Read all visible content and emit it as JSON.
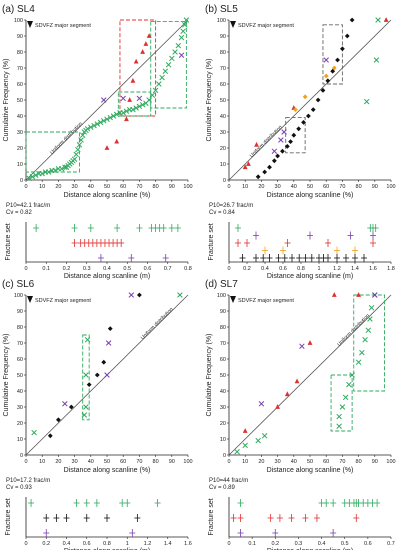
{
  "panels": [
    {
      "id": "a",
      "title": "(a) SL4",
      "segment_label": "SDVFZ major segment",
      "distribution_label": "Uniform distribution",
      "p10_text": "P10=42.1 frac/m",
      "cv_text": "Cv = 0.82",
      "colors": {
        "green": "#2eaa5e",
        "red": "#e03030",
        "purple": "#7a3fb0",
        "black": "#111111",
        "orange": "#f0a020",
        "gray": "#666666"
      }
    },
    {
      "id": "b",
      "title": "(b) SL5",
      "segment_label": "SDVFZ major segment",
      "distribution_label": "Uniform distribution",
      "p10_text": "P10=26.7 frac/m",
      "cv_text": "Cv = 0.84"
    },
    {
      "id": "c",
      "title": "(c) SL6",
      "segment_label": "SDVFZ major segment",
      "distribution_label": "Uniform distribution",
      "p10_text": "P10=17.2 frac/m",
      "cv_text": "Cv = 0.93"
    },
    {
      "id": "d",
      "title": "(d) SL7",
      "segment_label": "SDVFZ major segment",
      "distribution_label": "Uniform distribution",
      "p10_text": "P10=44 frac/m",
      "cv_text": "Cv = 0.89"
    }
  ],
  "chart_data": [
    {
      "type": "scatter",
      "panel": "a",
      "xlabel": "Distance along scanline (%)",
      "ylabel": "Cumulative Frequency (%)",
      "xlim": [
        0,
        100
      ],
      "ylim": [
        0,
        100
      ],
      "xticks": [
        0,
        10,
        20,
        30,
        40,
        50,
        60,
        70,
        80,
        90,
        100
      ],
      "yticks": [
        0,
        10,
        20,
        30,
        40,
        50,
        60,
        70,
        80,
        90,
        100
      ],
      "series": [
        {
          "set": "green",
          "marker": "x",
          "points": [
            [
              2,
              1
            ],
            [
              4,
              2
            ],
            [
              6,
              3
            ],
            [
              8,
              4
            ],
            [
              10,
              4
            ],
            [
              12,
              5
            ],
            [
              14,
              5
            ],
            [
              16,
              6
            ],
            [
              18,
              6
            ],
            [
              20,
              7
            ],
            [
              22,
              7
            ],
            [
              24,
              8
            ],
            [
              25,
              8
            ],
            [
              26,
              9
            ],
            [
              27,
              10
            ],
            [
              28,
              11
            ],
            [
              29,
              12
            ],
            [
              30,
              13
            ],
            [
              31,
              16
            ],
            [
              32,
              19
            ],
            [
              33,
              22
            ],
            [
              34,
              25
            ],
            [
              35,
              28
            ],
            [
              36,
              30
            ],
            [
              37,
              31
            ],
            [
              38,
              32
            ],
            [
              40,
              33
            ],
            [
              42,
              34
            ],
            [
              44,
              35
            ],
            [
              46,
              36
            ],
            [
              48,
              37
            ],
            [
              50,
              38
            ],
            [
              52,
              39
            ],
            [
              54,
              40
            ],
            [
              56,
              41
            ],
            [
              58,
              42
            ],
            [
              60,
              42
            ],
            [
              62,
              43
            ],
            [
              64,
              44
            ],
            [
              66,
              44
            ],
            [
              68,
              45
            ],
            [
              70,
              46
            ],
            [
              72,
              47
            ],
            [
              74,
              48
            ],
            [
              76,
              50
            ],
            [
              78,
              53
            ],
            [
              80,
              56
            ],
            [
              82,
              60
            ],
            [
              84,
              64
            ],
            [
              86,
              68
            ],
            [
              88,
              72
            ],
            [
              90,
              76
            ],
            [
              92,
              80
            ],
            [
              94,
              84
            ],
            [
              96,
              89
            ],
            [
              97,
              93
            ],
            [
              98,
              97
            ],
            [
              99,
              100
            ]
          ]
        },
        {
          "set": "red",
          "marker": "triangle",
          "points": [
            [
              50,
              20
            ],
            [
              56,
              24
            ],
            [
              62,
              38
            ],
            [
              64,
              50
            ],
            [
              66,
              62
            ],
            [
              68,
              74
            ],
            [
              72,
              80
            ],
            [
              74,
              85
            ],
            [
              76,
              90
            ]
          ]
        },
        {
          "set": "purple",
          "marker": "x",
          "points": [
            [
              48,
              50
            ],
            [
              60,
              51
            ],
            [
              70,
              51
            ],
            [
              96,
              78
            ]
          ]
        }
      ],
      "hist_xlabel": "Distance along scanline (m)",
      "hist_ylabel": "Fracture set",
      "hist_xlim": [
        0,
        0.8
      ],
      "hist_xticks": [
        0,
        0.1,
        0.2,
        0.3,
        0.4,
        0.5,
        0.6,
        0.7,
        0.8
      ],
      "hist_rows": [
        {
          "set": "green",
          "positions": [
            0.05,
            0.24,
            0.32,
            0.45,
            0.56,
            0.62,
            0.64,
            0.66,
            0.68,
            0.72,
            0.75
          ]
        },
        {
          "set": "red",
          "positions": [
            0.24,
            0.27,
            0.29,
            0.31,
            0.33,
            0.35,
            0.37,
            0.39,
            0.41,
            0.43,
            0.45,
            0.47
          ]
        },
        {
          "set": "purple",
          "positions": [
            0.37,
            0.52,
            0.69
          ]
        }
      ]
    },
    {
      "type": "scatter",
      "panel": "b",
      "xlabel": "Distance along scanline (%)",
      "ylabel": "Cumulative Frequency (%)",
      "xlim": [
        0,
        100
      ],
      "ylim": [
        0,
        100
      ],
      "xticks": [
        0,
        10,
        20,
        30,
        40,
        50,
        60,
        70,
        80,
        90,
        100
      ],
      "yticks": [
        0,
        10,
        20,
        30,
        40,
        50,
        60,
        70,
        80,
        90,
        100
      ],
      "series": [
        {
          "set": "black",
          "marker": "diamond",
          "points": [
            [
              18,
              2
            ],
            [
              22,
              5
            ],
            [
              25,
              8
            ],
            [
              28,
              12
            ],
            [
              30,
              15
            ],
            [
              33,
              18
            ],
            [
              36,
              21
            ],
            [
              38,
              24
            ],
            [
              40,
              28
            ],
            [
              43,
              32
            ],
            [
              46,
              36
            ],
            [
              49,
              40
            ],
            [
              52,
              44
            ],
            [
              55,
              50
            ],
            [
              58,
              56
            ],
            [
              61,
              62
            ],
            [
              64,
              68
            ],
            [
              67,
              75
            ],
            [
              70,
              82
            ],
            [
              73,
              90
            ],
            [
              76,
              100
            ]
          ]
        },
        {
          "set": "red",
          "marker": "triangle",
          "points": [
            [
              10,
              8
            ],
            [
              12,
              10
            ],
            [
              17,
              22
            ],
            [
              40,
              45
            ],
            [
              97,
              100
            ]
          ]
        },
        {
          "set": "purple",
          "marker": "x",
          "points": [
            [
              28,
              18
            ],
            [
              32,
              25
            ],
            [
              34,
              30
            ],
            [
              60,
              75
            ]
          ]
        },
        {
          "set": "orange",
          "marker": "diamond",
          "points": [
            [
              41,
              44
            ],
            [
              47,
              52
            ],
            [
              60,
              65
            ],
            [
              65,
              70
            ]
          ]
        },
        {
          "set": "green",
          "marker": "x",
          "points": [
            [
              92,
              100
            ],
            [
              91,
              75
            ],
            [
              85,
              49
            ]
          ]
        }
      ],
      "hist_xlabel": "Distance along scanline (m)",
      "hist_ylabel": "Fracture set",
      "hist_xlim": [
        0,
        1.8
      ],
      "hist_xticks": [
        0,
        0.2,
        0.4,
        0.6,
        0.8,
        1,
        1.2,
        1.4,
        1.6,
        1.8
      ],
      "hist_rows": [
        {
          "set": "green",
          "positions": [
            0.1,
            1.57,
            1.6,
            1.63
          ]
        },
        {
          "set": "purple",
          "positions": [
            0.3,
            0.9,
            1.35,
            1.6
          ]
        },
        {
          "set": "red",
          "positions": [
            0.1,
            0.2,
            0.65,
            1.1,
            1.6
          ]
        },
        {
          "set": "orange",
          "positions": [
            0.4,
            0.6,
            1.2,
            1.4
          ]
        },
        {
          "set": "black",
          "positions": [
            0.15,
            0.3,
            0.38,
            0.45,
            0.55,
            0.62,
            0.7,
            0.78,
            0.85,
            0.92,
            1.0,
            1.05,
            1.1,
            1.2,
            1.3,
            1.4,
            1.5
          ]
        }
      ]
    },
    {
      "type": "scatter",
      "panel": "c",
      "xlabel": "Distance along scanline (%)",
      "ylabel": "Cumulative Frequency (%)",
      "xlim": [
        0,
        100
      ],
      "ylim": [
        0,
        100
      ],
      "xticks": [
        0,
        10,
        20,
        30,
        40,
        50,
        60,
        70,
        80,
        90,
        100
      ],
      "yticks": [
        0,
        10,
        20,
        30,
        40,
        50,
        60,
        70,
        80,
        90,
        100
      ],
      "series": [
        {
          "set": "black",
          "marker": "diamond",
          "points": [
            [
              15,
              12
            ],
            [
              20,
              22
            ],
            [
              28,
              30
            ],
            [
              39,
              44
            ],
            [
              44,
              50
            ],
            [
              48,
              58
            ],
            [
              52,
              79
            ],
            [
              70,
              100
            ]
          ]
        },
        {
          "set": "green",
          "marker": "x",
          "points": [
            [
              5,
              14
            ],
            [
              36,
              25
            ],
            [
              37,
              30
            ],
            [
              37,
              50
            ],
            [
              38,
              72
            ],
            [
              95,
              100
            ]
          ]
        },
        {
          "set": "purple",
          "marker": "x",
          "points": [
            [
              24,
              32
            ],
            [
              50,
              50
            ],
            [
              51,
              70
            ],
            [
              65,
              100
            ]
          ]
        }
      ],
      "hist_xlabel": "Distance along scanline (m)",
      "hist_ylabel": "Fracture set",
      "hist_xlim": [
        0,
        1.6
      ],
      "hist_xticks": [
        0,
        0.2,
        0.4,
        0.6,
        0.8,
        1,
        1.2,
        1.4,
        1.6
      ],
      "hist_rows": [
        {
          "set": "green",
          "positions": [
            0.05,
            0.5,
            0.6,
            0.7,
            0.95,
            1.0,
            1.3
          ]
        },
        {
          "set": "black",
          "positions": [
            0.2,
            0.3,
            0.4,
            0.6,
            0.8,
            1.1
          ]
        },
        {
          "set": "purple",
          "positions": [
            0.2,
            1.05
          ]
        }
      ]
    },
    {
      "type": "scatter",
      "panel": "d",
      "xlabel": "Distance along scanline (%)",
      "ylabel": "Cumulative Frequency (%)",
      "xlim": [
        0,
        100
      ],
      "ylim": [
        0,
        100
      ],
      "xticks": [
        0,
        10,
        20,
        30,
        40,
        50,
        60,
        70,
        80,
        90,
        100
      ],
      "yticks": [
        0,
        10,
        20,
        30,
        40,
        50,
        60,
        70,
        80,
        90,
        100
      ],
      "series": [
        {
          "set": "green",
          "marker": "x",
          "points": [
            [
              5,
              2
            ],
            [
              10,
              6
            ],
            [
              18,
              9
            ],
            [
              22,
              12
            ],
            [
              68,
              18
            ],
            [
              68,
              24
            ],
            [
              70,
              30
            ],
            [
              72,
              36
            ],
            [
              74,
              44
            ],
            [
              76,
              50
            ],
            [
              80,
              58
            ],
            [
              82,
              64
            ],
            [
              84,
              72
            ],
            [
              86,
              78
            ],
            [
              87,
              85
            ],
            [
              88,
              92
            ],
            [
              90,
              100
            ]
          ]
        },
        {
          "set": "red",
          "marker": "triangle",
          "points": [
            [
              10,
              15
            ],
            [
              30,
              30
            ],
            [
              36,
              38
            ],
            [
              42,
              46
            ],
            [
              50,
              70
            ],
            [
              65,
              100
            ],
            [
              80,
              100
            ]
          ]
        },
        {
          "set": "purple",
          "marker": "x",
          "points": [
            [
              20,
              32
            ],
            [
              45,
              68
            ],
            [
              90,
              100
            ]
          ]
        }
      ],
      "hist_xlabel": "Distance along scanline (m)",
      "hist_ylabel": "Fracture set",
      "hist_xlim": [
        0,
        0.7
      ],
      "hist_xticks": [
        0,
        0.1,
        0.2,
        0.3,
        0.4,
        0.5,
        0.6,
        0.7
      ],
      "hist_rows": [
        {
          "set": "green",
          "positions": [
            0.05,
            0.4,
            0.42,
            0.45,
            0.5,
            0.52,
            0.54,
            0.55,
            0.56,
            0.58,
            0.6,
            0.62,
            0.64
          ]
        },
        {
          "set": "red",
          "positions": [
            0.02,
            0.05,
            0.18,
            0.22,
            0.27,
            0.33,
            0.38,
            0.55
          ]
        },
        {
          "set": "purple",
          "positions": [
            0.05,
            0.2,
            0.45
          ]
        }
      ]
    }
  ],
  "shared": {
    "colors": {
      "green": "#2eaa5e",
      "red": "#e03030",
      "purple": "#7a3fb0",
      "black": "#111111",
      "orange": "#f0a020",
      "gray": "#666666"
    }
  }
}
